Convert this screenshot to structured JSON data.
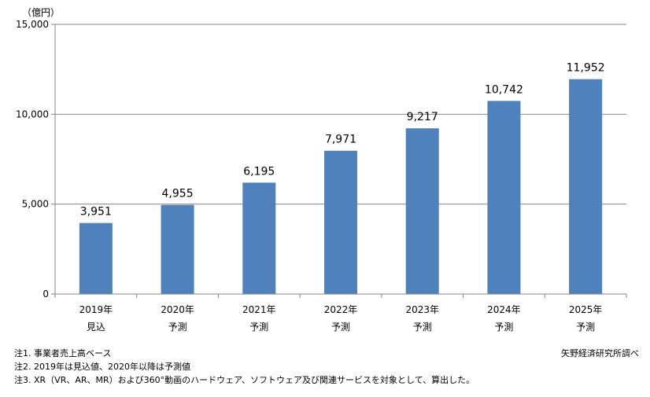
{
  "chart_data": {
    "type": "bar",
    "unit_label": "（億円）",
    "categories": [
      [
        "2019年",
        "見込"
      ],
      [
        "2020年",
        "予測"
      ],
      [
        "2021年",
        "予測"
      ],
      [
        "2022年",
        "予測"
      ],
      [
        "2023年",
        "予測"
      ],
      [
        "2024年",
        "予測"
      ],
      [
        "2025年",
        "予測"
      ]
    ],
    "values": [
      3951,
      4955,
      6195,
      7971,
      9217,
      10742,
      11952
    ],
    "value_labels": [
      "3,951",
      "4,955",
      "6,195",
      "7,971",
      "9,217",
      "10,742",
      "11,952"
    ],
    "yticks": [
      0,
      5000,
      10000,
      15000
    ],
    "ytick_labels": [
      "0",
      "5,000",
      "10,000",
      "15,000"
    ],
    "ylim": [
      0,
      15000
    ],
    "bar_color": "#4F81BD",
    "grid": true,
    "legend": "none"
  },
  "notes": [
    "注1.  事業者売上高ベース",
    "注2.  2019年は見込値、2020年以降は予測値",
    "注3.  XR（VR、AR、MR）および360°動画のハードウェア、ソフトウェア及び関連サービスを対象として、算出した。"
  ],
  "source": "矢野経済研究所調べ"
}
